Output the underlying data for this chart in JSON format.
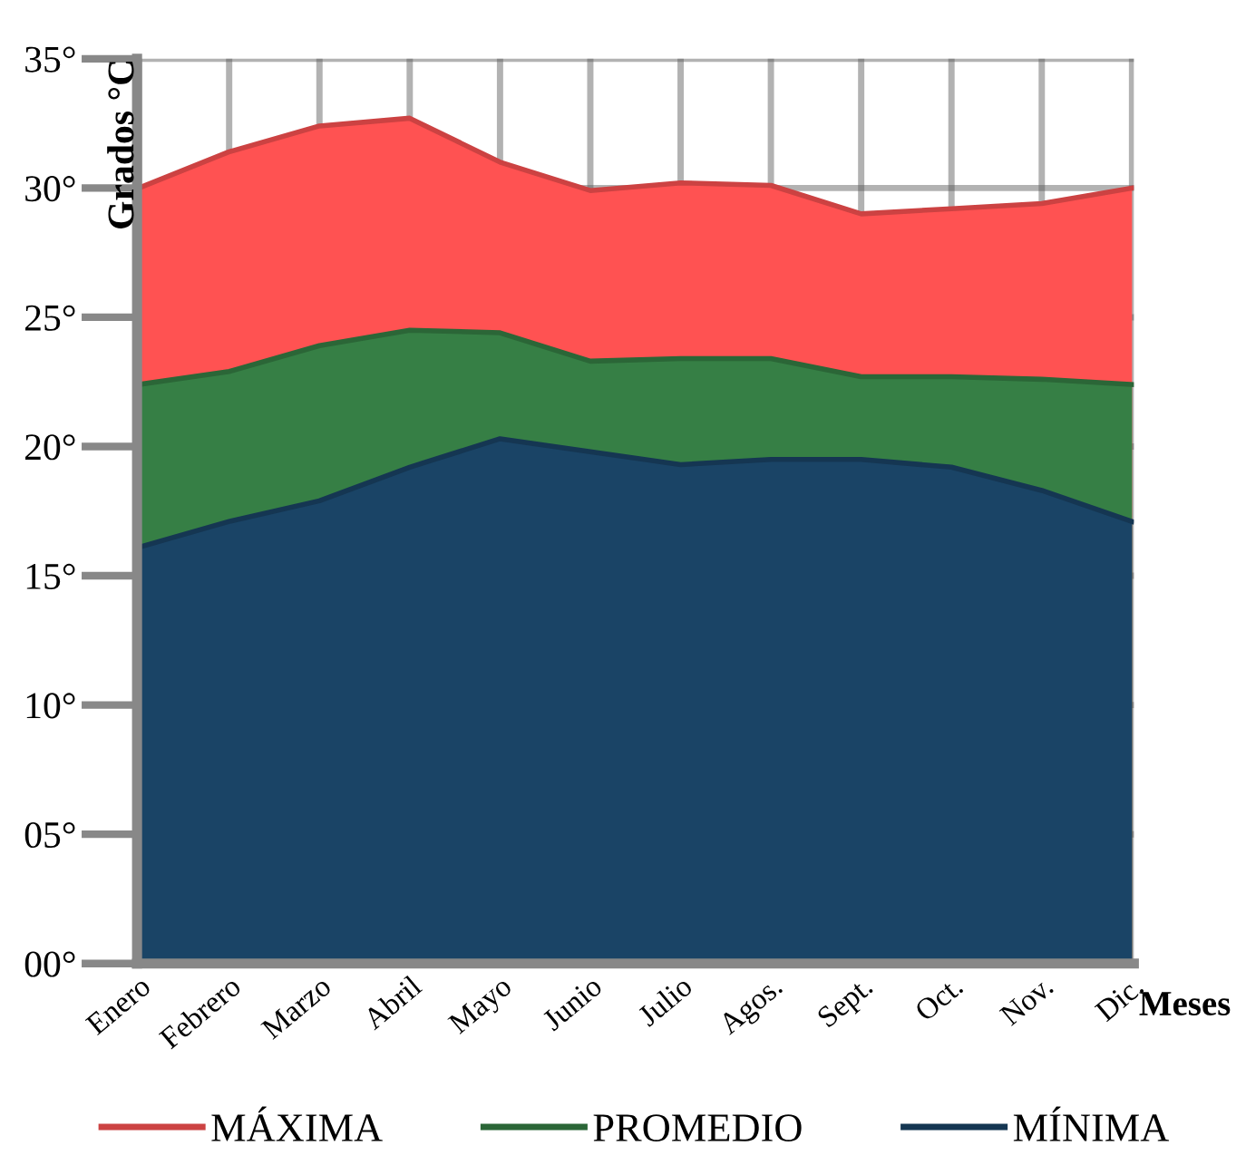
{
  "chart_data": {
    "type": "area",
    "xlabel": "Meses",
    "ylabel": "Grados °C",
    "categories": [
      "Enero",
      "Febrero",
      "Marzo",
      "Abril",
      "Mayo",
      "Junio",
      "Julio",
      "Agos.",
      "Sept.",
      "Oct.",
      "Nov.",
      "Dic."
    ],
    "series": [
      {
        "name": "MÁXIMA",
        "color": "#ff5252",
        "values": [
          30.0,
          31.4,
          32.4,
          32.7,
          31.0,
          29.9,
          30.2,
          30.1,
          29.0,
          29.2,
          29.4,
          30.0
        ]
      },
      {
        "name": "PROMEDIO",
        "color": "#367f45",
        "values": [
          22.4,
          22.9,
          23.9,
          24.5,
          24.4,
          23.3,
          23.4,
          23.4,
          22.7,
          22.7,
          22.6,
          22.4
        ]
      },
      {
        "name": "MÍNIMA",
        "color": "#1a4466",
        "values": [
          16.1,
          17.1,
          17.9,
          19.2,
          20.3,
          19.8,
          19.3,
          19.5,
          19.5,
          19.2,
          18.3,
          17.1
        ]
      }
    ],
    "ylim": [
      0,
      35
    ],
    "yticks": [
      {
        "value": 0,
        "label": "00°"
      },
      {
        "value": 5,
        "label": "05°"
      },
      {
        "value": 10,
        "label": "10°"
      },
      {
        "value": 15,
        "label": "15°"
      },
      {
        "value": 20,
        "label": "20°"
      },
      {
        "value": 25,
        "label": "25°"
      },
      {
        "value": 30,
        "label": "30°"
      },
      {
        "value": 35,
        "label": "35°"
      }
    ],
    "grid": true,
    "legend": "bottom"
  }
}
